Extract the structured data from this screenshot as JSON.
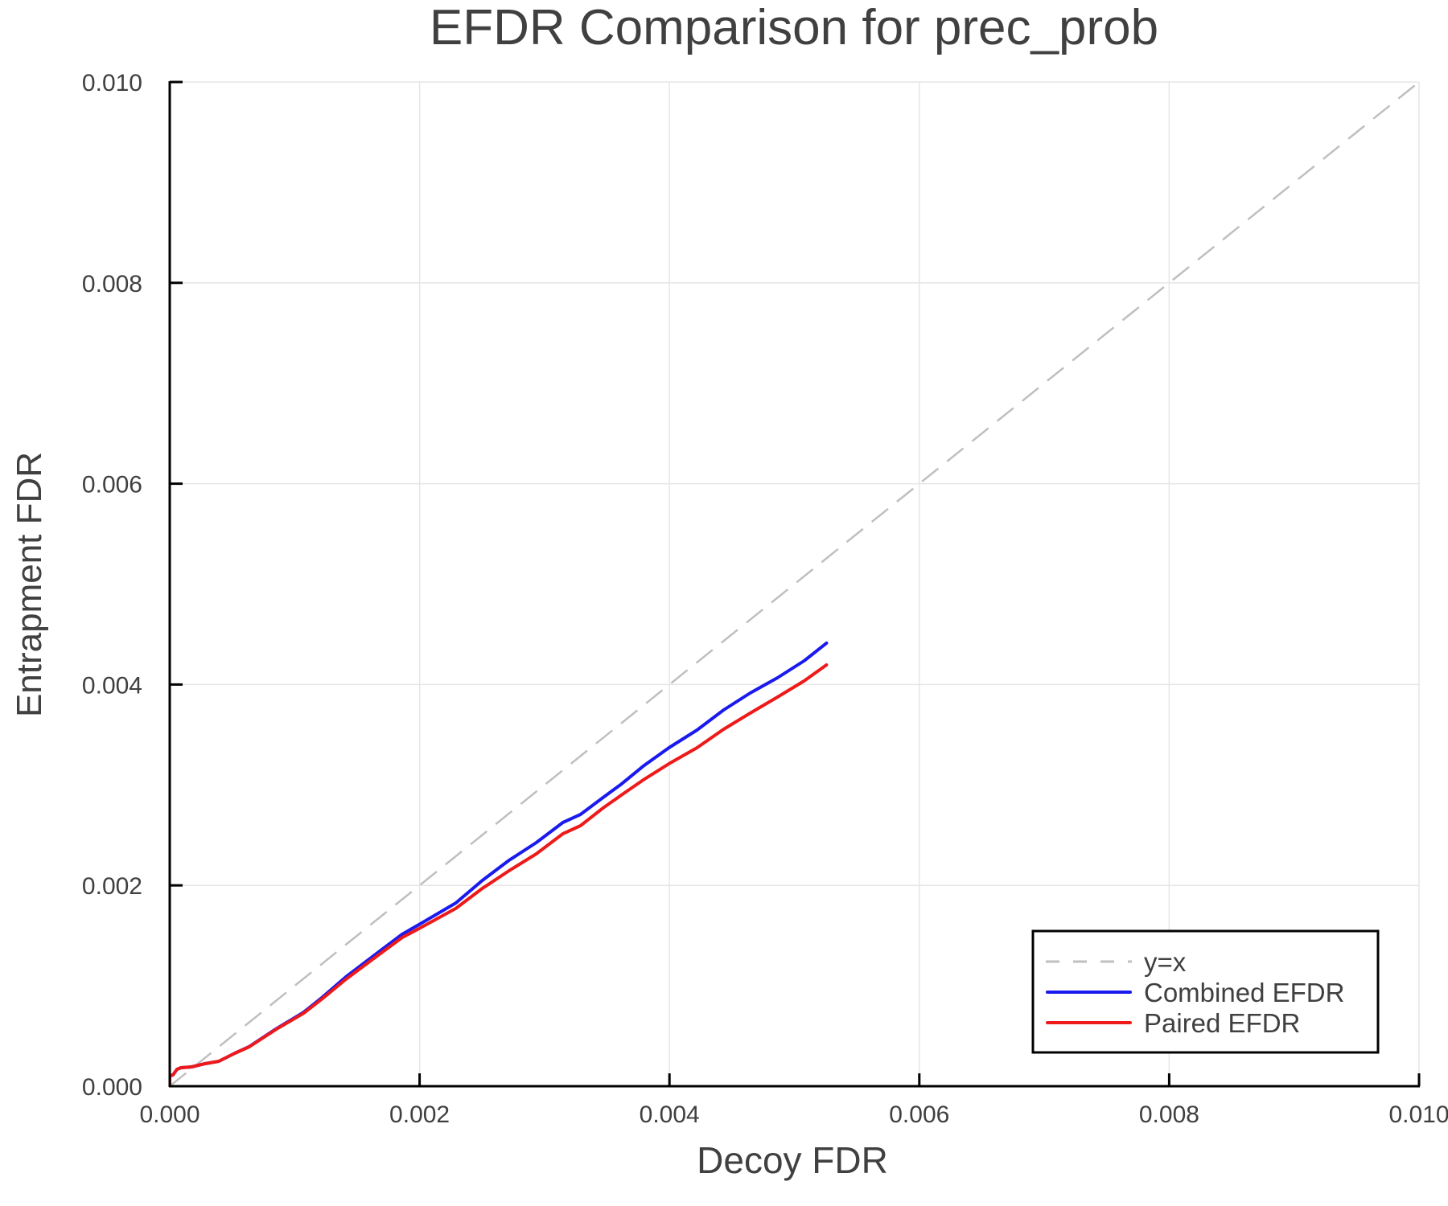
{
  "chart_data": {
    "type": "line",
    "title": "EFDR Comparison for prec_prob",
    "xlabel": "Decoy FDR",
    "ylabel": "Entrapment FDR",
    "xlim": [
      0.0,
      0.01
    ],
    "ylim": [
      0.0,
      0.01
    ],
    "xticks": [
      "0.000",
      "0.002",
      "0.004",
      "0.006",
      "0.008",
      "0.010"
    ],
    "yticks": [
      "0.000",
      "0.002",
      "0.004",
      "0.006",
      "0.008",
      "0.010"
    ],
    "grid": true,
    "legend_position": "bottom-right",
    "series": [
      {
        "name": "y=x",
        "color": "#bfbfbf",
        "style": "dashed",
        "x": [
          0.0,
          0.01
        ],
        "y": [
          0.0,
          0.01
        ]
      },
      {
        "name": "Combined EFDR",
        "color": "#1a1aee",
        "style": "solid",
        "x": [
          0.0,
          0.0,
          2.6e-05,
          5.8e-05,
          9e-05,
          0.000174,
          0.000283,
          0.000393,
          0.000521,
          0.000637,
          0.00085,
          0.00107,
          0.00122,
          0.00141,
          0.001647,
          0.00186,
          0.001995,
          0.00229,
          0.002503,
          0.002716,
          0.002934,
          0.003147,
          0.003288,
          0.003468,
          0.003616,
          0.00379,
          0.003996,
          0.004221,
          0.004434,
          0.004646,
          0.004865,
          0.005077,
          0.005257
        ],
        "y": [
          0.0,
          0.000104,
          0.000112,
          0.000168,
          0.000184,
          0.000192,
          0.000224,
          0.000248,
          0.000328,
          0.000395,
          0.00057,
          0.000735,
          0.000885,
          0.001089,
          0.001313,
          0.001513,
          0.001609,
          0.001825,
          0.00205,
          0.00225,
          0.002426,
          0.002626,
          0.002706,
          0.002874,
          0.00301,
          0.003187,
          0.003371,
          0.003547,
          0.003747,
          0.003915,
          0.004067,
          0.004235,
          0.004412
        ]
      },
      {
        "name": "Paired EFDR",
        "color": "#ee1a1a",
        "style": "solid",
        "x": [
          0.0,
          0.0,
          2.6e-05,
          5.8e-05,
          9e-05,
          0.000174,
          0.000283,
          0.000393,
          0.000521,
          0.000637,
          0.00085,
          0.00107,
          0.00122,
          0.00141,
          0.001647,
          0.00186,
          0.001995,
          0.00229,
          0.002503,
          0.002716,
          0.002934,
          0.003147,
          0.003288,
          0.003468,
          0.003616,
          0.00379,
          0.003996,
          0.004221,
          0.004434,
          0.004646,
          0.004865,
          0.005077,
          0.005257
        ],
        "y": [
          0.0,
          0.000104,
          0.000112,
          0.000168,
          0.000184,
          0.000192,
          0.000224,
          0.000248,
          0.000328,
          0.000392,
          0.000565,
          0.000725,
          0.00087,
          0.001065,
          0.001285,
          0.00148,
          0.001569,
          0.00177,
          0.00197,
          0.002146,
          0.002314,
          0.002514,
          0.002594,
          0.00277,
          0.0029,
          0.00305,
          0.003211,
          0.003371,
          0.003555,
          0.003715,
          0.003875,
          0.004035,
          0.004195
        ]
      }
    ]
  },
  "colors": {
    "text": "#404040",
    "axis": "#000000",
    "grid": "#e6e6e6"
  }
}
